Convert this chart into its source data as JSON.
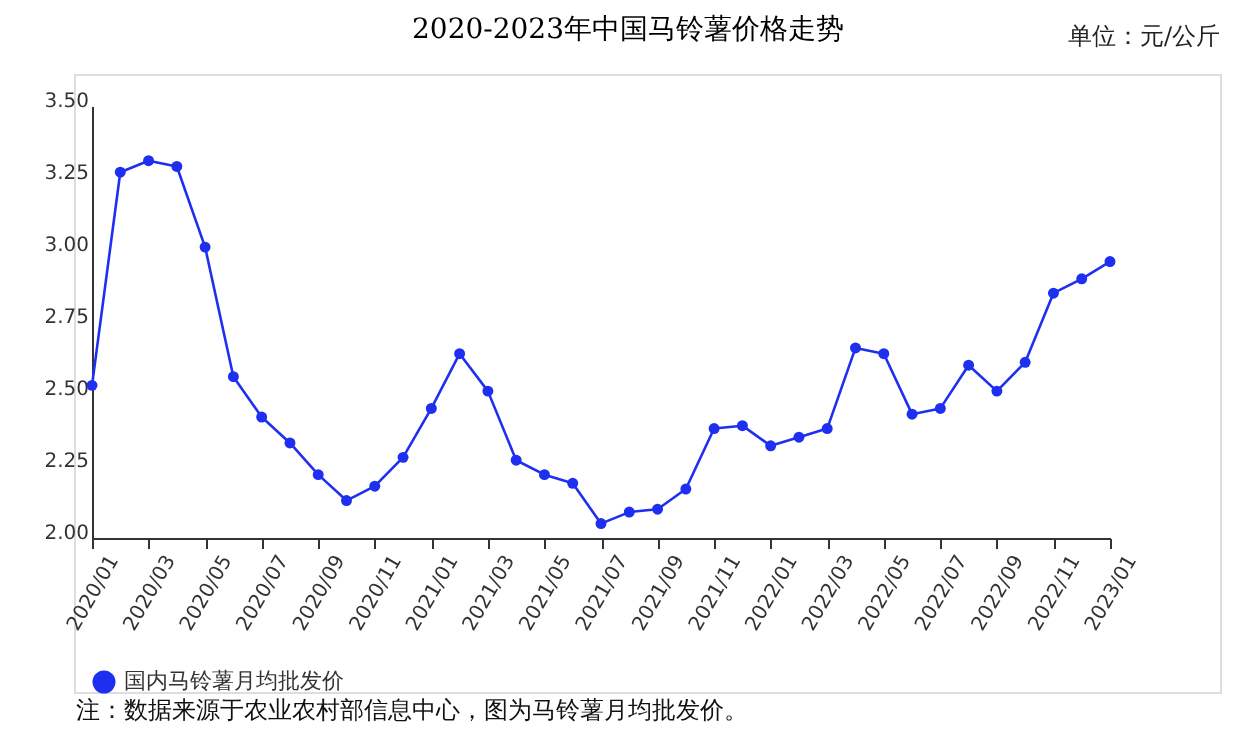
{
  "chart_data": {
    "type": "line",
    "title": "2020-2023年中国马铃薯价格走势",
    "annotations": [
      "单位：元/公斤",
      "注：数据来源于农业农村部信息中心，图为马铃薯月均批发价。"
    ],
    "categories": [
      "2020/01",
      null,
      "2020/03",
      null,
      "2020/05",
      null,
      "2020/07",
      null,
      "2020/09",
      null,
      "2020/11",
      null,
      "2021/01",
      null,
      "2021/03",
      null,
      "2021/05",
      null,
      "2021/07",
      null,
      "2021/09",
      null,
      "2021/11",
      null,
      "2022/01",
      null,
      "2022/03",
      null,
      "2022/05",
      null,
      "2022/07",
      null,
      "2022/09",
      null,
      "2022/11",
      null,
      "2023/01"
    ],
    "series": [
      {
        "name": "国内马铃薯月均批发价",
        "color": "#1f2ff0",
        "values": [
          2.53,
          3.27,
          3.31,
          3.29,
          3.01,
          2.56,
          2.42,
          2.33,
          2.22,
          2.13,
          2.18,
          2.28,
          2.45,
          2.64,
          2.51,
          2.27,
          2.22,
          2.19,
          2.05,
          2.09,
          2.1,
          2.17,
          2.38,
          2.39,
          2.32,
          2.35,
          2.38,
          2.66,
          2.64,
          2.43,
          2.45,
          2.6,
          2.51,
          2.61,
          2.85,
          2.9,
          2.96
        ]
      }
    ],
    "ylim": [
      2.0,
      3.5
    ],
    "yticks": [
      {
        "value": 2.0,
        "label": "2.00"
      },
      {
        "value": 2.25,
        "label": "2.25"
      },
      {
        "value": 2.5,
        "label": "2.50"
      },
      {
        "value": 2.75,
        "label": "2.75"
      },
      {
        "value": 3.0,
        "label": "3.00"
      },
      {
        "value": 3.25,
        "label": "3.25"
      },
      {
        "value": 3.5,
        "label": "3.50"
      }
    ],
    "grid": false,
    "legend": "bottom",
    "marker": "circle",
    "line_style": "solid"
  }
}
